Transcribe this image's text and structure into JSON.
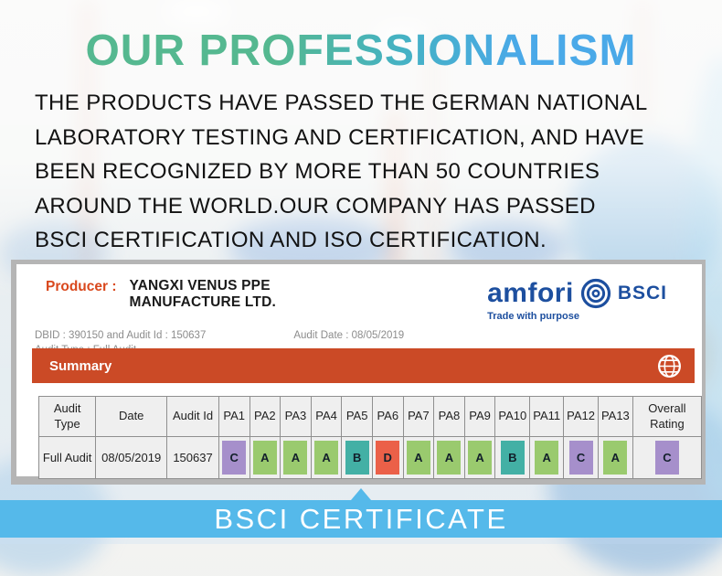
{
  "page": {
    "title": "OUR PROFESSIONALISM",
    "description": "THE PRODUCTS HAVE PASSED THE GERMAN NATIONAL\nLABORATORY TESTING AND CERTIFICATION, AND HAVE\nBEEN RECOGNIZED BY MORE THAN 50 COUNTRIES\nAROUND THE WORLD.OUR COMPANY HAS PASSED\nBSCI CERTIFICATION AND ISO CERTIFICATION.",
    "title_colors": {
      "start": "#55b890",
      "end": "#4aa9e8"
    }
  },
  "certificate": {
    "producer_label": "Producer :",
    "producer_name_line1": "YANGXI VENUS PPE",
    "producer_name_line2": "MANUFACTURE LTD.",
    "dbid_line": "DBID : 390150 and Audit Id : 150637",
    "audit_date_line": "Audit Date : 08/05/2019",
    "audit_type_line": "Audit Type : Full Audit",
    "logo": {
      "brand": "amfori",
      "suffix": "BSCI",
      "tagline": "Trade with purpose",
      "color": "#1d4f9f",
      "icon": "amfori-spiral-icon"
    },
    "summary_label": "Summary",
    "summary_bar_color": "#cb4a26",
    "summary_icon": "globe-icon",
    "table": {
      "headers": [
        "Audit Type",
        "Date",
        "Audit Id",
        "PA1",
        "PA2",
        "PA3",
        "PA4",
        "PA5",
        "PA6",
        "PA7",
        "PA8",
        "PA9",
        "PA10",
        "PA11",
        "PA12",
        "PA13",
        "Overall Rating"
      ],
      "row": {
        "audit_type": "Full Audit",
        "date": "08/05/2019",
        "audit_id": "150637",
        "ratings": [
          {
            "pa": "PA1",
            "grade": "C"
          },
          {
            "pa": "PA2",
            "grade": "A"
          },
          {
            "pa": "PA3",
            "grade": "A"
          },
          {
            "pa": "PA4",
            "grade": "A"
          },
          {
            "pa": "PA5",
            "grade": "B"
          },
          {
            "pa": "PA6",
            "grade": "D"
          },
          {
            "pa": "PA7",
            "grade": "A"
          },
          {
            "pa": "PA8",
            "grade": "A"
          },
          {
            "pa": "PA9",
            "grade": "A"
          },
          {
            "pa": "PA10",
            "grade": "B"
          },
          {
            "pa": "PA11",
            "grade": "A"
          },
          {
            "pa": "PA12",
            "grade": "C"
          },
          {
            "pa": "PA13",
            "grade": "A"
          }
        ],
        "overall": "C"
      }
    },
    "rating_colors": {
      "A": "#9aca6e",
      "B": "#43b0a5",
      "C": "#a68fcb",
      "D": "#eb6048"
    }
  },
  "footer": {
    "banner": "BSCI CERTIFICATE",
    "banner_color": "#55b9ea"
  }
}
